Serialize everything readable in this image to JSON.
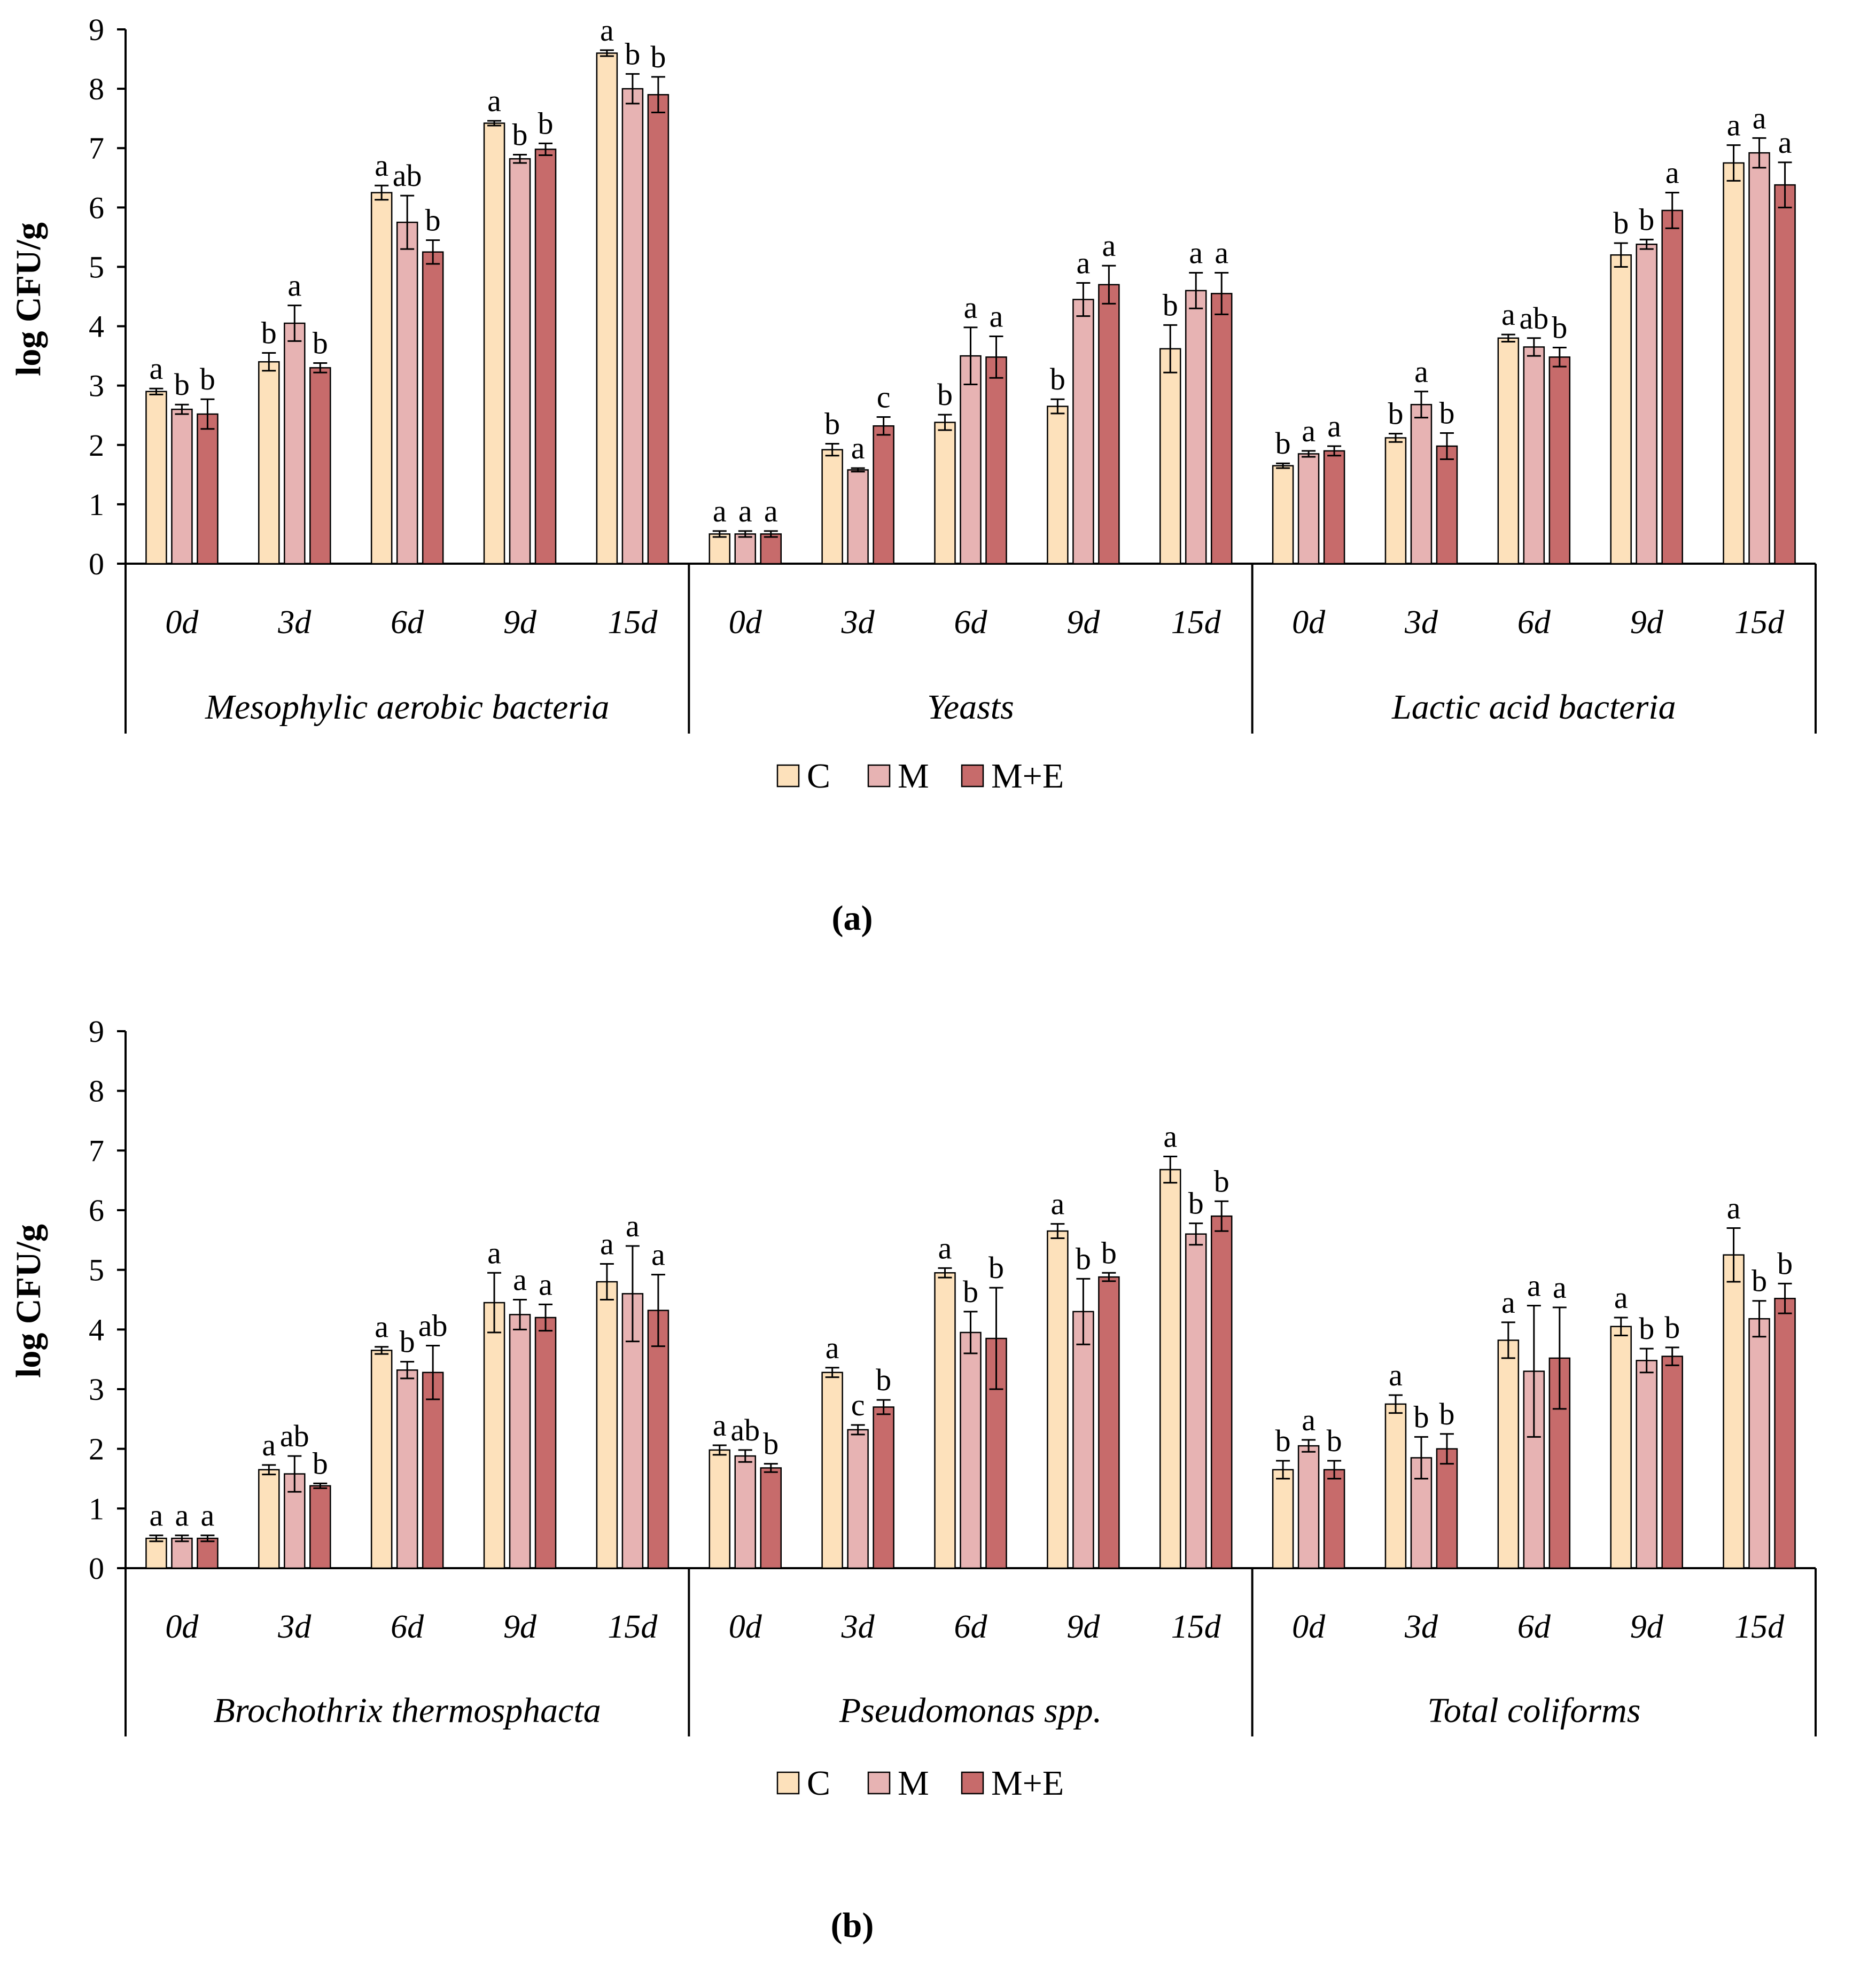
{
  "series_names": [
    "C",
    "M",
    "M+E"
  ],
  "colors": {
    "C": "#fde1bb",
    "M": "#e7b3b3",
    "M+E": "#c76b6b",
    "outline": "#000000"
  },
  "chart_data": [
    {
      "type": "bar",
      "panel_label": "(a)",
      "ylabel": "log CFU/g",
      "ylim": [
        0,
        9
      ],
      "yticks": [
        0,
        1,
        2,
        3,
        4,
        5,
        6,
        7,
        8,
        9
      ],
      "days": [
        "0d",
        "3d",
        "6d",
        "9d",
        "15d"
      ],
      "legend": [
        "C",
        "M",
        "M+E"
      ],
      "groups": [
        {
          "name": "Mesophylic aerobic bacteria",
          "series": [
            {
              "name": "C",
              "values": [
                2.9,
                3.4,
                6.25,
                7.42,
                8.6
              ],
              "errors": [
                0.05,
                0.15,
                0.12,
                0.04,
                0.05
              ]
            },
            {
              "name": "M",
              "values": [
                2.6,
                4.05,
                5.75,
                6.82,
                8.0
              ],
              "errors": [
                0.08,
                0.3,
                0.45,
                0.07,
                0.25
              ]
            },
            {
              "name": "M+E",
              "values": [
                2.52,
                3.3,
                5.25,
                6.98,
                7.9
              ],
              "errors": [
                0.25,
                0.08,
                0.2,
                0.1,
                0.3
              ]
            }
          ],
          "letters": [
            [
              "a",
              "b",
              "b"
            ],
            [
              "b",
              "a",
              "b"
            ],
            [
              "a",
              "ab",
              "b"
            ],
            [
              "a",
              "b",
              "b"
            ],
            [
              "a",
              "b",
              "b"
            ]
          ]
        },
        {
          "name": "Yeasts",
          "series": [
            {
              "name": "C",
              "values": [
                0.5,
                1.92,
                2.38,
                2.65,
                3.62
              ],
              "errors": [
                0.05,
                0.1,
                0.13,
                0.12,
                0.4
              ]
            },
            {
              "name": "M",
              "values": [
                0.5,
                1.58,
                3.5,
                4.45,
                4.6
              ],
              "errors": [
                0.05,
                0.03,
                0.48,
                0.28,
                0.3
              ]
            },
            {
              "name": "M+E",
              "values": [
                0.5,
                2.32,
                3.48,
                4.7,
                4.55
              ],
              "errors": [
                0.05,
                0.15,
                0.35,
                0.32,
                0.35
              ]
            }
          ],
          "letters": [
            [
              "a",
              "a",
              "a"
            ],
            [
              "b",
              "a",
              "c"
            ],
            [
              "b",
              "a",
              "a"
            ],
            [
              "b",
              "a",
              "a"
            ],
            [
              "b",
              "a",
              "a"
            ]
          ]
        },
        {
          "name": "Lactic acid bacteria",
          "series": [
            {
              "name": "C",
              "values": [
                1.65,
                2.12,
                3.8,
                5.2,
                6.75
              ],
              "errors": [
                0.04,
                0.07,
                0.06,
                0.2,
                0.3
              ]
            },
            {
              "name": "M",
              "values": [
                1.85,
                2.68,
                3.65,
                5.38,
                6.92
              ],
              "errors": [
                0.05,
                0.22,
                0.15,
                0.08,
                0.25
              ]
            },
            {
              "name": "M+E",
              "values": [
                1.9,
                1.98,
                3.48,
                5.95,
                6.38
              ],
              "errors": [
                0.08,
                0.22,
                0.16,
                0.3,
                0.38
              ]
            }
          ],
          "letters": [
            [
              "b",
              "a",
              "a"
            ],
            [
              "b",
              "a",
              "b"
            ],
            [
              "a",
              "ab",
              "b"
            ],
            [
              "b",
              "b",
              "a"
            ],
            [
              "a",
              "a",
              "a"
            ]
          ]
        }
      ]
    },
    {
      "type": "bar",
      "panel_label": "(b)",
      "ylabel": "log CFU/g",
      "ylim": [
        0,
        9
      ],
      "yticks": [
        0,
        1,
        2,
        3,
        4,
        5,
        6,
        7,
        8,
        9
      ],
      "days": [
        "0d",
        "3d",
        "6d",
        "9d",
        "15d"
      ],
      "legend": [
        "C",
        "M",
        "M+E"
      ],
      "groups": [
        {
          "name": "Brochothrix thermosphacta",
          "series": [
            {
              "name": "C",
              "values": [
                0.5,
                1.65,
                3.65,
                4.45,
                4.8
              ],
              "errors": [
                0.05,
                0.08,
                0.06,
                0.5,
                0.3
              ]
            },
            {
              "name": "M",
              "values": [
                0.5,
                1.58,
                3.32,
                4.25,
                4.6
              ],
              "errors": [
                0.05,
                0.3,
                0.14,
                0.25,
                0.8
              ]
            },
            {
              "name": "M+E",
              "values": [
                0.5,
                1.38,
                3.28,
                4.2,
                4.32
              ],
              "errors": [
                0.05,
                0.04,
                0.45,
                0.22,
                0.6
              ]
            }
          ],
          "letters": [
            [
              "a",
              "a",
              "a"
            ],
            [
              "a",
              "ab",
              "b"
            ],
            [
              "a",
              "b",
              "ab"
            ],
            [
              "a",
              "a",
              "a"
            ],
            [
              "a",
              "a",
              "a"
            ]
          ]
        },
        {
          "name": "Pseudomonas spp.",
          "series": [
            {
              "name": "C",
              "values": [
                1.98,
                3.28,
                4.95,
                5.65,
                6.68
              ],
              "errors": [
                0.08,
                0.08,
                0.08,
                0.12,
                0.22
              ]
            },
            {
              "name": "M",
              "values": [
                1.88,
                2.32,
                3.95,
                4.3,
                5.6
              ],
              "errors": [
                0.1,
                0.08,
                0.35,
                0.55,
                0.18
              ]
            },
            {
              "name": "M+E",
              "values": [
                1.68,
                2.7,
                3.85,
                4.88,
                5.9
              ],
              "errors": [
                0.07,
                0.12,
                0.85,
                0.07,
                0.25
              ]
            }
          ],
          "letters": [
            [
              "a",
              "ab",
              "b"
            ],
            [
              "a",
              "c",
              "b"
            ],
            [
              "a",
              "b",
              "b"
            ],
            [
              "a",
              "b",
              "b"
            ],
            [
              "a",
              "b",
              "b"
            ]
          ]
        },
        {
          "name": "Total coliforms",
          "series": [
            {
              "name": "C",
              "values": [
                1.65,
                2.75,
                3.82,
                4.05,
                5.25
              ],
              "errors": [
                0.15,
                0.15,
                0.3,
                0.15,
                0.45
              ]
            },
            {
              "name": "M",
              "values": [
                2.05,
                1.85,
                3.3,
                3.48,
                4.18
              ],
              "errors": [
                0.1,
                0.35,
                1.1,
                0.2,
                0.3
              ]
            },
            {
              "name": "M+E",
              "values": [
                1.65,
                2.0,
                3.52,
                3.55,
                4.52
              ],
              "errors": [
                0.15,
                0.25,
                0.85,
                0.15,
                0.25
              ]
            }
          ],
          "letters": [
            [
              "b",
              "a",
              "b"
            ],
            [
              "a",
              "b",
              "b"
            ],
            [
              "a",
              "a",
              "a"
            ],
            [
              "a",
              "b",
              "b"
            ],
            [
              "a",
              "b",
              "b"
            ]
          ]
        }
      ]
    }
  ]
}
